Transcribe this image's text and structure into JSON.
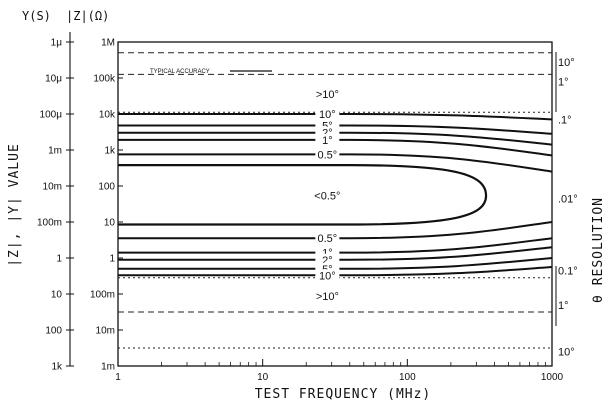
{
  "chart_data": {
    "type": "line",
    "x_axis": {
      "label": "TEST FREQUENCY (MHz)",
      "scale": "log",
      "range": [
        1,
        1000
      ],
      "tick_labels": [
        "1",
        "10",
        "100",
        "1000"
      ],
      "tick_values": [
        1,
        10,
        100,
        1000
      ]
    },
    "left_axis_title": "|Z|, |Y| VALUE",
    "left_header": {
      "y_label": "Y(S)",
      "z_label": "|Z|(Ω)"
    },
    "y_ticks": [
      {
        "pos": 0,
        "y_label": "1k",
        "z_label": "1m"
      },
      {
        "pos": 1,
        "y_label": "100",
        "z_label": "10m"
      },
      {
        "pos": 2,
        "y_label": "10",
        "z_label": "100m"
      },
      {
        "pos": 3,
        "y_label": "1",
        "z_label": "1"
      },
      {
        "pos": 4,
        "y_label": "100m",
        "z_label": "10"
      },
      {
        "pos": 5,
        "y_label": "10m",
        "z_label": "100"
      },
      {
        "pos": 6,
        "y_label": "1m",
        "z_label": "1k"
      },
      {
        "pos": 7,
        "y_label": "100μ",
        "z_label": "10k"
      },
      {
        "pos": 8,
        "y_label": "10μ",
        "z_label": "100k"
      },
      {
        "pos": 9,
        "y_label": "1μ",
        "z_label": "1M"
      }
    ],
    "right_axis_title": "θ RESOLUTION",
    "right_labels": [
      {
        "text": "10°",
        "pos": 8.45
      },
      {
        "text": "1°",
        "pos": 7.9
      },
      {
        "text": ".1°",
        "pos": 6.85
      },
      {
        "text": ".01°",
        "pos": 4.65
      },
      {
        "text": "0.1°",
        "pos": 2.65
      },
      {
        "text": "1°",
        "pos": 1.7
      },
      {
        "text": "10°",
        "pos": 0.4
      }
    ],
    "legend": {
      "label": "TYPICAL ACCURACY"
    },
    "dashed_lines": [
      {
        "pos": 8.7,
        "style": "dashed"
      },
      {
        "pos": 8.1,
        "style": "dashed"
      },
      {
        "pos": 7.05,
        "style": "dotted"
      },
      {
        "pos": 2.45,
        "style": "dotted"
      },
      {
        "pos": 1.5,
        "style": "dashed"
      },
      {
        "pos": 0.5,
        "style": "dotted"
      }
    ],
    "region_labels": [
      {
        "text": ">10°",
        "x": 28,
        "pos": 7.55
      },
      {
        "text": ">10°",
        "x": 28,
        "pos": 1.95
      }
    ],
    "series": [
      {
        "name": "10°",
        "kind": "line",
        "start_pos": 7.0,
        "end_pos": 6.85,
        "label_x": 28
      },
      {
        "name": "5°",
        "kind": "line",
        "start_pos": 6.68,
        "end_pos": 6.45,
        "label_x": 28
      },
      {
        "name": "2°",
        "kind": "line",
        "start_pos": 6.48,
        "end_pos": 6.15,
        "label_x": 28
      },
      {
        "name": "1°",
        "kind": "line",
        "start_pos": 6.28,
        "end_pos": 5.85,
        "label_x": 28
      },
      {
        "name": "0.5°",
        "kind": "line",
        "start_pos": 5.88,
        "end_pos": 5.4,
        "label_x": 28
      },
      {
        "name": "<0.5°",
        "kind": "ellipse",
        "upper_pos": 5.58,
        "lower_pos": 3.93,
        "center_pos": 4.73,
        "x_end": 350,
        "label_x": 28
      },
      {
        "name": "0.5°",
        "kind": "line",
        "start_pos": 3.55,
        "end_pos": 4.0,
        "label_x": 28
      },
      {
        "name": "1°",
        "kind": "line",
        "start_pos": 3.15,
        "end_pos": 3.55,
        "label_x": 28
      },
      {
        "name": "2°",
        "kind": "line",
        "start_pos": 2.95,
        "end_pos": 3.3,
        "label_x": 28
      },
      {
        "name": "5°",
        "kind": "line",
        "start_pos": 2.7,
        "end_pos": 3.0,
        "label_x": 28
      },
      {
        "name": "10°",
        "kind": "line",
        "start_pos": 2.52,
        "end_pos": 2.75,
        "label_x": 28
      }
    ]
  }
}
